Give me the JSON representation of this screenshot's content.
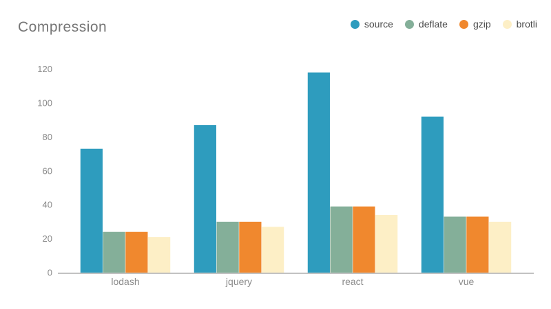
{
  "chart_data": {
    "type": "bar",
    "title": "Compression",
    "categories": [
      "lodash",
      "jquery",
      "react",
      "vue"
    ],
    "series": [
      {
        "name": "source",
        "color": "#2E9CBE",
        "values": [
          73,
          87,
          118,
          92
        ]
      },
      {
        "name": "deflate",
        "color": "#84AF99",
        "values": [
          24,
          30,
          39,
          33
        ]
      },
      {
        "name": "gzip",
        "color": "#F0882E",
        "values": [
          24,
          30,
          39,
          33
        ]
      },
      {
        "name": "brotli",
        "color": "#FDEFC6",
        "values": [
          21,
          27,
          34,
          30
        ]
      }
    ],
    "xlabel": "",
    "ylabel": "",
    "ylim": [
      0,
      120
    ],
    "yticks": [
      0,
      20,
      40,
      60,
      80,
      100,
      120
    ],
    "grid": false,
    "legend_position": "top-right",
    "colors": {
      "background": "#ffffff",
      "axis_line": "#c2c2c2",
      "tick_label": "#8a8a8a",
      "title": "#757575",
      "legend_label": "#4a4a4a"
    }
  }
}
